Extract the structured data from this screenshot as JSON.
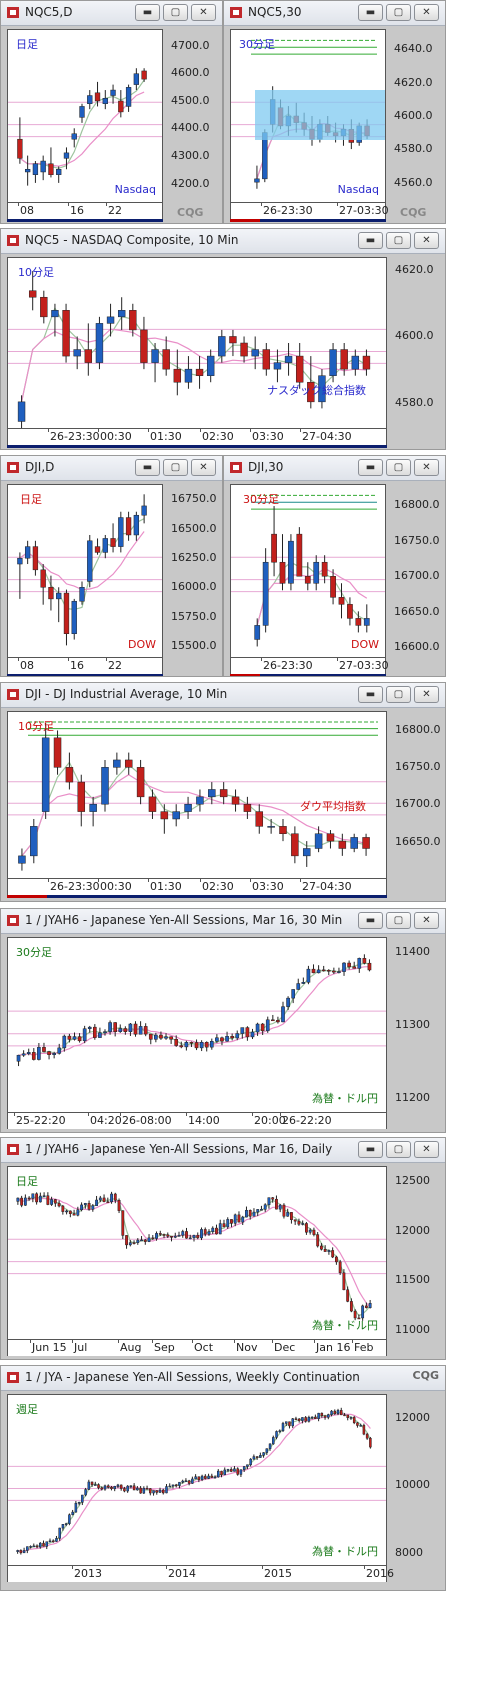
{
  "colors": {
    "up": "#1f5fbf",
    "down": "#c2201c",
    "ma_short": "#9ec49e",
    "ma_long": "#e98fc8"
  },
  "windows": [
    {
      "id": "nqc5-d",
      "title": "NQC5,D",
      "period_label": "日足",
      "label_color": "#2a2acc",
      "index_label": "Nasdaq",
      "y_ticks": [
        "4700.0",
        "4600.0",
        "4500.0",
        "4400.0",
        "4300.0",
        "4200.0"
      ],
      "y_range": [
        4130,
        4760
      ],
      "x_ticks": [
        "08",
        "16",
        "22"
      ],
      "candles": [
        {
          "o": 4360,
          "h": 4440,
          "l": 4270,
          "c": 4290
        },
        {
          "o": 4240,
          "h": 4300,
          "l": 4190,
          "c": 4250
        },
        {
          "o": 4230,
          "h": 4280,
          "l": 4200,
          "c": 4270
        },
        {
          "o": 4240,
          "h": 4300,
          "l": 4210,
          "c": 4280
        },
        {
          "o": 4270,
          "h": 4330,
          "l": 4220,
          "c": 4230
        },
        {
          "o": 4230,
          "h": 4260,
          "l": 4200,
          "c": 4250
        },
        {
          "o": 4290,
          "h": 4330,
          "l": 4250,
          "c": 4310
        },
        {
          "o": 4360,
          "h": 4400,
          "l": 4330,
          "c": 4380
        },
        {
          "o": 4440,
          "h": 4490,
          "l": 4420,
          "c": 4480
        },
        {
          "o": 4490,
          "h": 4540,
          "l": 4470,
          "c": 4520
        },
        {
          "o": 4530,
          "h": 4570,
          "l": 4480,
          "c": 4500
        },
        {
          "o": 4490,
          "h": 4540,
          "l": 4470,
          "c": 4510
        },
        {
          "o": 4520,
          "h": 4560,
          "l": 4490,
          "c": 4540
        },
        {
          "o": 4500,
          "h": 4540,
          "l": 4440,
          "c": 4460
        },
        {
          "o": 4480,
          "h": 4560,
          "l": 4460,
          "c": 4550
        },
        {
          "o": 4560,
          "h": 4620,
          "l": 4540,
          "c": 4600
        },
        {
          "o": 4610,
          "h": 4620,
          "l": 4570,
          "c": 4580
        }
      ]
    },
    {
      "id": "nqc5-30",
      "title": "NQC5,30",
      "period_label": "30分足",
      "label_color": "#2a2acc",
      "index_label": "Nasdaq",
      "y_ticks": [
        "4640.0",
        "4620.0",
        "4600.0",
        "4580.0",
        "4560.0"
      ],
      "y_range": [
        4548,
        4652
      ],
      "x_ticks": [
        "26-23:30",
        "27-03:30"
      ],
      "candles": [
        {
          "o": 4560,
          "h": 4570,
          "l": 4556,
          "c": 4562
        },
        {
          "o": 4562,
          "h": 4592,
          "l": 4560,
          "c": 4590
        },
        {
          "o": 4595,
          "h": 4618,
          "l": 4590,
          "c": 4610
        },
        {
          "o": 4605,
          "h": 4610,
          "l": 4592,
          "c": 4594
        },
        {
          "o": 4594,
          "h": 4606,
          "l": 4588,
          "c": 4600
        },
        {
          "o": 4600,
          "h": 4608,
          "l": 4590,
          "c": 4596
        },
        {
          "o": 4596,
          "h": 4602,
          "l": 4588,
          "c": 4592
        },
        {
          "o": 4592,
          "h": 4600,
          "l": 4582,
          "c": 4586
        },
        {
          "o": 4586,
          "h": 4598,
          "l": 4584,
          "c": 4595
        },
        {
          "o": 4595,
          "h": 4600,
          "l": 4588,
          "c": 4590
        },
        {
          "o": 4590,
          "h": 4596,
          "l": 4584,
          "c": 4588
        },
        {
          "o": 4588,
          "h": 4595,
          "l": 4582,
          "c": 4592
        },
        {
          "o": 4592,
          "h": 4598,
          "l": 4580,
          "c": 4584
        },
        {
          "o": 4584,
          "h": 4596,
          "l": 4582,
          "c": 4594
        },
        {
          "o": 4594,
          "h": 4598,
          "l": 4586,
          "c": 4588
        }
      ]
    },
    {
      "id": "nqc5-10",
      "title": "NQC5 - NASDAQ Composite, 10 Min",
      "period_label": "10分足",
      "label_color": "#2a2acc",
      "index_label": "ナスダック総合指数",
      "y_ticks": [
        "4620.0",
        "4600.0",
        "4580.0"
      ],
      "y_range": [
        4572,
        4624
      ],
      "x_ticks": [
        "26-23:30",
        "00:30",
        "01:30",
        "02:30",
        "03:30",
        "27-04:30"
      ],
      "candles": [
        {
          "o": 4574,
          "h": 4582,
          "l": 4572,
          "c": 4580
        },
        {
          "o": 4614,
          "h": 4620,
          "l": 4608,
          "c": 4612
        },
        {
          "o": 4612,
          "h": 4614,
          "l": 4604,
          "c": 4606
        },
        {
          "o": 4606,
          "h": 4610,
          "l": 4600,
          "c": 4608
        },
        {
          "o": 4608,
          "h": 4610,
          "l": 4592,
          "c": 4594
        },
        {
          "o": 4594,
          "h": 4600,
          "l": 4590,
          "c": 4596
        },
        {
          "o": 4596,
          "h": 4604,
          "l": 4588,
          "c": 4592
        },
        {
          "o": 4592,
          "h": 4606,
          "l": 4590,
          "c": 4604
        },
        {
          "o": 4604,
          "h": 4610,
          "l": 4600,
          "c": 4606
        },
        {
          "o": 4606,
          "h": 4612,
          "l": 4602,
          "c": 4608
        },
        {
          "o": 4608,
          "h": 4610,
          "l": 4600,
          "c": 4602
        },
        {
          "o": 4602,
          "h": 4606,
          "l": 4590,
          "c": 4592
        },
        {
          "o": 4592,
          "h": 4598,
          "l": 4586,
          "c": 4596
        },
        {
          "o": 4596,
          "h": 4600,
          "l": 4588,
          "c": 4590
        },
        {
          "o": 4590,
          "h": 4596,
          "l": 4582,
          "c": 4586
        },
        {
          "o": 4586,
          "h": 4594,
          "l": 4584,
          "c": 4590
        },
        {
          "o": 4590,
          "h": 4594,
          "l": 4584,
          "c": 4588
        },
        {
          "o": 4588,
          "h": 4596,
          "l": 4586,
          "c": 4594
        },
        {
          "o": 4594,
          "h": 4602,
          "l": 4592,
          "c": 4600
        },
        {
          "o": 4600,
          "h": 4602,
          "l": 4594,
          "c": 4598
        },
        {
          "o": 4598,
          "h": 4600,
          "l": 4592,
          "c": 4594
        },
        {
          "o": 4594,
          "h": 4600,
          "l": 4590,
          "c": 4596
        },
        {
          "o": 4596,
          "h": 4598,
          "l": 4588,
          "c": 4590
        },
        {
          "o": 4590,
          "h": 4596,
          "l": 4586,
          "c": 4592
        },
        {
          "o": 4592,
          "h": 4598,
          "l": 4588,
          "c": 4594
        },
        {
          "o": 4594,
          "h": 4598,
          "l": 4584,
          "c": 4586
        },
        {
          "o": 4586,
          "h": 4594,
          "l": 4578,
          "c": 4580
        },
        {
          "o": 4580,
          "h": 4590,
          "l": 4578,
          "c": 4588
        },
        {
          "o": 4588,
          "h": 4598,
          "l": 4586,
          "c": 4596
        },
        {
          "o": 4596,
          "h": 4598,
          "l": 4588,
          "c": 4590
        },
        {
          "o": 4590,
          "h": 4596,
          "l": 4588,
          "c": 4594
        },
        {
          "o": 4594,
          "h": 4596,
          "l": 4588,
          "c": 4590
        }
      ]
    },
    {
      "id": "dji-d",
      "title": "DJI,D",
      "period_label": "日足",
      "label_color": "#cc1111",
      "index_label": "DOW",
      "y_ticks": [
        "16750.0",
        "16500.0",
        "16250.0",
        "16000.0",
        "15750.0",
        "15500.0"
      ],
      "y_range": [
        15400,
        16880
      ],
      "x_ticks": [
        "08",
        "16",
        "22"
      ],
      "candles": [
        {
          "o": 16200,
          "h": 16300,
          "l": 15900,
          "c": 16250
        },
        {
          "o": 16250,
          "h": 16400,
          "l": 16200,
          "c": 16350
        },
        {
          "o": 16350,
          "h": 16400,
          "l": 16100,
          "c": 16150
        },
        {
          "o": 16150,
          "h": 16200,
          "l": 15850,
          "c": 16000
        },
        {
          "o": 16000,
          "h": 16100,
          "l": 15800,
          "c": 15900
        },
        {
          "o": 15900,
          "h": 16000,
          "l": 15700,
          "c": 15950
        },
        {
          "o": 15950,
          "h": 15980,
          "l": 15500,
          "c": 15600
        },
        {
          "o": 15600,
          "h": 15900,
          "l": 15550,
          "c": 15880
        },
        {
          "o": 15880,
          "h": 16050,
          "l": 15850,
          "c": 16000
        },
        {
          "o": 16050,
          "h": 16450,
          "l": 16000,
          "c": 16400
        },
        {
          "o": 16350,
          "h": 16420,
          "l": 16280,
          "c": 16300
        },
        {
          "o": 16300,
          "h": 16450,
          "l": 16250,
          "c": 16420
        },
        {
          "o": 16420,
          "h": 16550,
          "l": 16300,
          "c": 16350
        },
        {
          "o": 16350,
          "h": 16650,
          "l": 16300,
          "c": 16600
        },
        {
          "o": 16600,
          "h": 16650,
          "l": 16400,
          "c": 16450
        },
        {
          "o": 16450,
          "h": 16650,
          "l": 16400,
          "c": 16620
        },
        {
          "o": 16620,
          "h": 16800,
          "l": 16550,
          "c": 16700
        }
      ]
    },
    {
      "id": "dji-30",
      "title": "DJI,30",
      "period_label": "30分足",
      "label_color": "#cc1111",
      "index_label": "DOW",
      "y_ticks": [
        "16800.0",
        "16750.0",
        "16700.0",
        "16650.0",
        "16600.0"
      ],
      "y_range": [
        16585,
        16830
      ],
      "x_ticks": [
        "26-23:30",
        "27-03:30"
      ],
      "candles": [
        {
          "o": 16610,
          "h": 16640,
          "l": 16600,
          "c": 16630
        },
        {
          "o": 16630,
          "h": 16740,
          "l": 16620,
          "c": 16720
        },
        {
          "o": 16760,
          "h": 16800,
          "l": 16700,
          "c": 16720
        },
        {
          "o": 16720,
          "h": 16760,
          "l": 16680,
          "c": 16690
        },
        {
          "o": 16690,
          "h": 16760,
          "l": 16680,
          "c": 16750
        },
        {
          "o": 16760,
          "h": 16770,
          "l": 16700,
          "c": 16700
        },
        {
          "o": 16700,
          "h": 16720,
          "l": 16680,
          "c": 16690
        },
        {
          "o": 16690,
          "h": 16730,
          "l": 16680,
          "c": 16720
        },
        {
          "o": 16720,
          "h": 16730,
          "l": 16690,
          "c": 16700
        },
        {
          "o": 16700,
          "h": 16710,
          "l": 16660,
          "c": 16670
        },
        {
          "o": 16670,
          "h": 16690,
          "l": 16640,
          "c": 16660
        },
        {
          "o": 16660,
          "h": 16670,
          "l": 16630,
          "c": 16640
        },
        {
          "o": 16640,
          "h": 16650,
          "l": 16620,
          "c": 16630
        },
        {
          "o": 16630,
          "h": 16660,
          "l": 16620,
          "c": 16640
        }
      ]
    },
    {
      "id": "dji-10",
      "title": "DJI - DJ Industrial Average, 10 Min",
      "period_label": "10分足",
      "label_color": "#cc1111",
      "index_label": "ダウ平均指数",
      "y_ticks": [
        "16800.0",
        "16750.0",
        "16700.0",
        "16650.0"
      ],
      "y_range": [
        16600,
        16825
      ],
      "x_ticks": [
        "26-23:30",
        "00:30",
        "01:30",
        "02:30",
        "03:30",
        "27-04:30"
      ],
      "candles": [
        {
          "o": 16620,
          "h": 16640,
          "l": 16610,
          "c": 16630
        },
        {
          "o": 16630,
          "h": 16680,
          "l": 16620,
          "c": 16670
        },
        {
          "o": 16690,
          "h": 16810,
          "l": 16680,
          "c": 16790
        },
        {
          "o": 16790,
          "h": 16800,
          "l": 16740,
          "c": 16750
        },
        {
          "o": 16750,
          "h": 16770,
          "l": 16720,
          "c": 16730
        },
        {
          "o": 16730,
          "h": 16740,
          "l": 16670,
          "c": 16690
        },
        {
          "o": 16690,
          "h": 16710,
          "l": 16670,
          "c": 16700
        },
        {
          "o": 16700,
          "h": 16760,
          "l": 16690,
          "c": 16750
        },
        {
          "o": 16750,
          "h": 16770,
          "l": 16740,
          "c": 16760
        },
        {
          "o": 16760,
          "h": 16770,
          "l": 16740,
          "c": 16750
        },
        {
          "o": 16750,
          "h": 16760,
          "l": 16700,
          "c": 16710
        },
        {
          "o": 16710,
          "h": 16720,
          "l": 16680,
          "c": 16690
        },
        {
          "o": 16690,
          "h": 16700,
          "l": 16660,
          "c": 16680
        },
        {
          "o": 16680,
          "h": 16700,
          "l": 16670,
          "c": 16690
        },
        {
          "o": 16690,
          "h": 16710,
          "l": 16680,
          "c": 16700
        },
        {
          "o": 16700,
          "h": 16720,
          "l": 16690,
          "c": 16710
        },
        {
          "o": 16710,
          "h": 16730,
          "l": 16700,
          "c": 16720
        },
        {
          "o": 16720,
          "h": 16730,
          "l": 16700,
          "c": 16710
        },
        {
          "o": 16710,
          "h": 16720,
          "l": 16690,
          "c": 16700
        },
        {
          "o": 16700,
          "h": 16710,
          "l": 16680,
          "c": 16690
        },
        {
          "o": 16690,
          "h": 16700,
          "l": 16660,
          "c": 16670
        },
        {
          "o": 16670,
          "h": 16680,
          "l": 16660,
          "c": 16670
        },
        {
          "o": 16670,
          "h": 16680,
          "l": 16650,
          "c": 16660
        },
        {
          "o": 16660,
          "h": 16670,
          "l": 16620,
          "c": 16630
        },
        {
          "o": 16630,
          "h": 16650,
          "l": 16615,
          "c": 16640
        },
        {
          "o": 16640,
          "h": 16670,
          "l": 16635,
          "c": 16660
        },
        {
          "o": 16660,
          "h": 16665,
          "l": 16640,
          "c": 16650
        },
        {
          "o": 16650,
          "h": 16660,
          "l": 16630,
          "c": 16640
        },
        {
          "o": 16640,
          "h": 16660,
          "l": 16635,
          "c": 16655
        },
        {
          "o": 16655,
          "h": 16660,
          "l": 16630,
          "c": 16640
        }
      ]
    },
    {
      "id": "jyah6-30",
      "title": "1 / JYAH6 - Japanese Yen-All Sessions, Mar 16, 30 Min",
      "period_label": "30分足",
      "label_color": "#1a7a1a",
      "index_label": "為替・ドル円",
      "y_ticks": [
        "11400",
        "11300",
        "11200"
      ],
      "y_range": [
        11180,
        11420
      ],
      "x_ticks": [
        "25-22:20",
        "04:20",
        "26-08:00",
        "14:00",
        "20:00",
        "26-22:20"
      ],
      "candles": []
    },
    {
      "id": "jyah6-d",
      "title": "1 / JYAH6 - Japanese Yen-All Sessions, Mar 16, Daily",
      "period_label": "日足",
      "label_color": "#1a7a1a",
      "index_label": "為替・ドル円",
      "y_ticks": [
        "12500",
        "12000",
        "11500",
        "11000"
      ],
      "y_range": [
        10900,
        12650
      ],
      "x_ticks": [
        "Jun 15",
        "Jul",
        "Aug",
        "Sep",
        "Oct",
        "Nov",
        "Dec",
        "Jan 16",
        "Feb"
      ],
      "candles": []
    },
    {
      "id": "jya-w",
      "title": "1 / JYA - Japanese Yen-All Sessions, Weekly Continuation",
      "period_label": "週足",
      "label_color": "#1a7a1a",
      "index_label": "為替・ドル円",
      "y_ticks": [
        "12000",
        "10000",
        "8000"
      ],
      "y_range": [
        7600,
        12700
      ],
      "x_ticks": [
        "2013",
        "2014",
        "2015",
        "2016"
      ],
      "candles": []
    }
  ]
}
